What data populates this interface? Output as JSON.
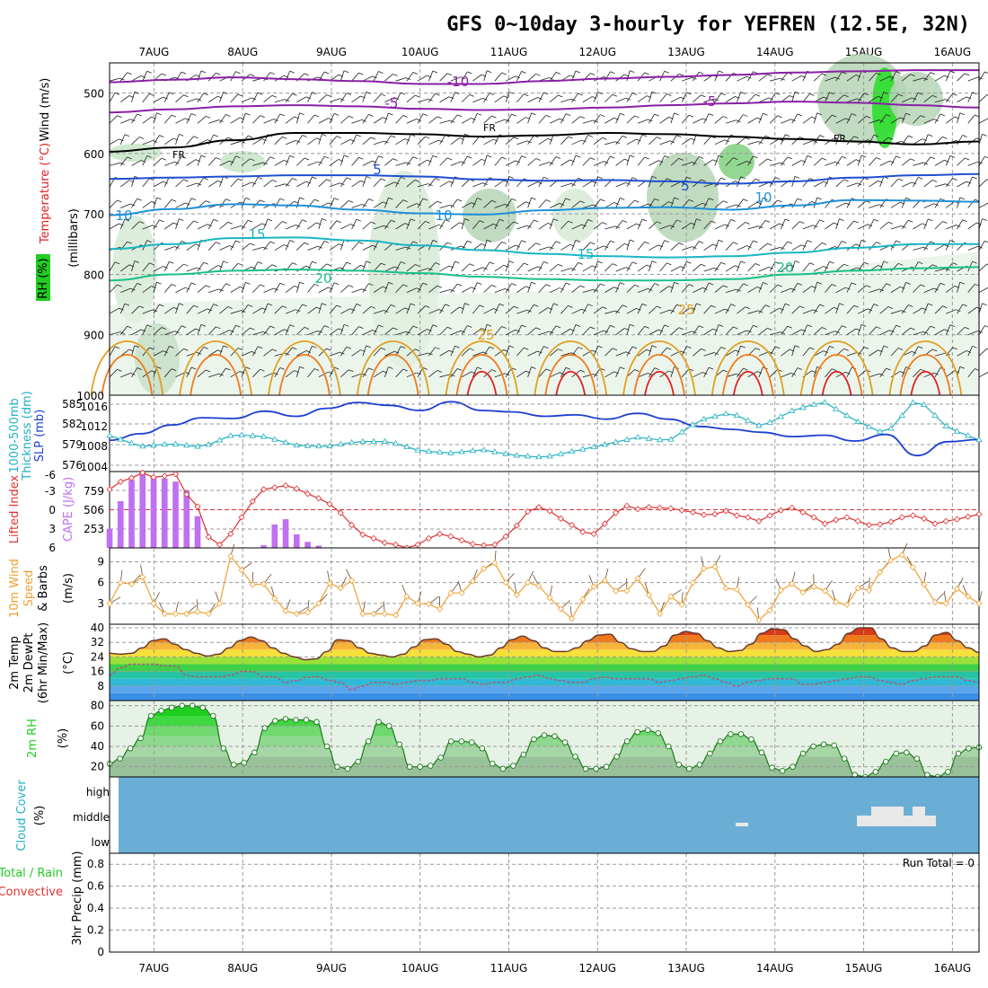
{
  "title": "GFS 0~10day 3-hourly for YEFREN (12.5E, 32N)",
  "date_labels": [
    "7AUG",
    "8AUG",
    "9AUG",
    "10AUG",
    "11AUG",
    "12AUG",
    "13AUG",
    "14AUG",
    "15AUG",
    "16AUG"
  ],
  "colors": {
    "temp_purple": "#8a1fa6",
    "temp_black": "#000000",
    "temp_blue": "#1f4fd0",
    "temp_lightblue": "#1e90d8",
    "temp_cyan": "#19b5c2",
    "temp_teal": "#19c08a",
    "temp_gold": "#e0a020",
    "temp_orange": "#f07a1a",
    "temp_red": "#e02020",
    "rh_green": "#22cc22",
    "thickness": "#1c3fd0",
    "slp": "#20b0c0",
    "lifted": "#e03030",
    "cape": "#c070f0",
    "wind10": "#f0a030",
    "cloud_bg": "#6aaed6",
    "cloud": "#e8e8e8"
  },
  "ylabels": {
    "p1": {
      "wind": "Wind (m/s)",
      "temp": "Temperature (°C)",
      "rh": "RH (%)",
      "units": "(millibars)"
    },
    "p2": {
      "a": "1000-500mb",
      "b": "Thickness (dm)",
      "c": "SLP (mb)"
    },
    "p3": {
      "a": "Lifted Index",
      "b": "CAPE (J/kg)"
    },
    "p4": {
      "a": "10m Wind",
      "b": "Speed",
      "c": "& Barbs",
      "d": "(m/s)"
    },
    "p5": {
      "a": "2m Temp",
      "b": "2m DewPt",
      "c": "(6hr Min/Max)",
      "d": "(°C)"
    },
    "p6": {
      "a": "2m RH",
      "b": "(%)"
    },
    "p7": {
      "a": "Cloud Cover",
      "b": "(%)"
    },
    "p8": {
      "a": "Total / Rain",
      "b": "Convective",
      "c": "3hr Precip (mm)"
    }
  },
  "ticks": {
    "p1": [
      "500",
      "600",
      "700",
      "800",
      "900",
      "1000"
    ],
    "p2_left": [
      "585",
      "582",
      "579",
      "576"
    ],
    "p2_right": [
      "1016",
      "1012",
      "1008",
      "1004"
    ],
    "p3_left": [
      "-6",
      "-3",
      "0",
      "3",
      "6"
    ],
    "p3_right": [
      "759",
      "506",
      "253"
    ],
    "p4": [
      "9",
      "6",
      "3"
    ],
    "p5": [
      "40",
      "32",
      "24",
      "16",
      "8"
    ],
    "p6": [
      "80",
      "60",
      "40",
      "20"
    ],
    "p7": [
      "high",
      "middle",
      "low"
    ],
    "p8": [
      "0.8",
      "0.6",
      "0.4",
      "0.2",
      "0"
    ]
  },
  "run_total": "Run Total = 0",
  "chart_data": [
    {
      "type": "heatmap",
      "panel": "upper-air temperature / RH / wind",
      "x": "time (3-hourly, 10 days)",
      "y_range_mb": [
        1000,
        450
      ],
      "contour_labels": [
        "-10",
        "-5",
        "FR",
        "5",
        "10",
        "15",
        "20",
        "25",
        "30"
      ],
      "contours": [
        {
          "label": "-10",
          "color": "temp_purple",
          "pressure_mb": [
            482,
            478,
            474,
            477,
            480,
            485,
            485,
            480,
            476,
            473,
            470,
            466,
            464,
            462,
            462
          ]
        },
        {
          "label": "-5",
          "color": "temp_purple",
          "pressure_mb": [
            532,
            527,
            522,
            520,
            522,
            526,
            528,
            527,
            524,
            520,
            517,
            514,
            516,
            520,
            524
          ]
        },
        {
          "label": "FR",
          "color": "temp_black",
          "pressure_mb": [
            597,
            590,
            578,
            566,
            566,
            568,
            572,
            570,
            566,
            568,
            572,
            576,
            580,
            585,
            580
          ]
        },
        {
          "label": "5",
          "color": "temp_blue",
          "pressure_mb": [
            642,
            640,
            638,
            636,
            636,
            638,
            643,
            645,
            644,
            646,
            650,
            646,
            640,
            636,
            634
          ]
        },
        {
          "label": "10",
          "color": "temp_lightblue",
          "pressure_mb": [
            702,
            692,
            684,
            686,
            693,
            699,
            701,
            694,
            690,
            689,
            693,
            686,
            677,
            678,
            680
          ]
        },
        {
          "label": "15",
          "color": "temp_cyan",
          "pressure_mb": [
            758,
            750,
            740,
            739,
            744,
            752,
            760,
            766,
            770,
            772,
            770,
            764,
            756,
            750,
            750
          ]
        },
        {
          "label": "20",
          "color": "temp_teal",
          "pressure_mb": [
            810,
            800,
            794,
            792,
            794,
            798,
            804,
            808,
            810,
            810,
            808,
            800,
            794,
            790,
            788
          ]
        }
      ],
      "wind_barbs": true
    },
    {
      "type": "line",
      "panel": "thickness & SLP",
      "series": [
        {
          "name": "1000-500mb Thickness (dm)",
          "values": [
            579.3,
            580.2,
            581.4,
            582.4,
            582.3,
            583.3,
            582.6,
            583.7,
            584.5,
            584.1,
            583.4,
            584.6,
            583.4,
            583.2,
            582.6,
            582.8,
            582.2,
            583.0,
            582.2,
            581.2,
            580.8,
            580.4,
            579.8,
            580.0,
            579.2,
            580.1,
            577.2,
            579.1,
            579.4
          ]
        },
        {
          "name": "SLP (mb)",
          "values": [
            1009.6,
            1007.6,
            1008.1,
            1007.5,
            1009.8,
            1009.4,
            1007.8,
            1007.6,
            1008.5,
            1008.5,
            1006.8,
            1006.4,
            1007.0,
            1006.0,
            1005.6,
            1006.8,
            1008.0,
            1009.3,
            1008.6,
            1012.4,
            1013.8,
            1011.2,
            1014.2,
            1015.8,
            1012.4,
            1009.8,
            1016.5,
            1011.0,
            1008.8
          ]
        }
      ],
      "ylim_thickness": [
        575,
        585.5
      ],
      "ylim_slp": [
        1003,
        1017
      ]
    },
    {
      "type": "bar",
      "panel": "lifted index & CAPE",
      "series": [
        {
          "name": "CAPE (J/kg)",
          "values": [
            253,
            620,
            900,
            1000,
            940,
            920,
            880,
            760,
            420,
            0,
            0,
            0,
            0,
            0,
            34,
            310,
            380,
            180,
            80,
            30,
            0,
            0,
            0,
            0,
            0,
            0,
            0,
            0,
            0,
            0,
            0,
            0,
            0,
            0,
            0,
            0,
            0,
            0,
            0,
            0,
            0,
            0,
            0,
            0,
            0,
            0,
            0,
            0,
            0,
            0,
            0,
            0,
            0,
            0,
            0,
            0,
            0,
            0,
            0,
            0,
            0,
            0,
            0,
            0,
            0,
            0,
            0,
            0,
            0,
            0,
            0,
            0,
            0,
            0,
            0,
            0,
            0,
            0,
            0,
            0
          ]
        },
        {
          "name": "Lifted Index",
          "values": [
            -3.2,
            -4.4,
            -5.0,
            -5.8,
            -5.1,
            -5.3,
            -5.6,
            -2.4,
            -0.5,
            4.3,
            5.5,
            3.8,
            1.2,
            -1.3,
            -3.2,
            -3.5,
            -3.8,
            -3.3,
            -2.5,
            -1.8,
            -0.9,
            0.5,
            2.4,
            3.9,
            4.5,
            5.2,
            5.5,
            6.0,
            5.5,
            4.5,
            3.8,
            4.2,
            4.8,
            5.4,
            5.6,
            5.5,
            4.2,
            2.5,
            0.3,
            -0.4,
            0.2,
            1.4,
            2.4,
            3.5,
            3.8,
            2.2,
            0.5,
            -0.6,
            -0.1,
            -0.4,
            -0.3,
            -0.2,
            0.1,
            0.4,
            0.8,
            0.7,
            0.2,
            0.9,
            1.2,
            1.8,
            0.9,
            0.1,
            -0.3,
            0.4,
            1.2,
            2.2,
            1.6,
            1.2,
            1.8,
            2.4,
            2.3,
            1.9,
            1.2,
            0.9,
            1.4,
            2.2,
            1.8,
            1.5,
            1.1,
            0.7
          ]
        }
      ],
      "ylim_li": [
        6,
        -6
      ],
      "ylim_cape": [
        0,
        1012
      ]
    },
    {
      "type": "line",
      "panel": "10m wind speed",
      "series": [
        {
          "name": "10m Wind Speed (m/s)",
          "values": [
            3.0,
            6.0,
            5.8,
            6.8,
            3.0,
            1.5,
            1.5,
            1.5,
            1.8,
            1.5,
            3.0,
            9.8,
            7.8,
            5.7,
            5.8,
            3.7,
            1.9,
            1.5,
            1.7,
            3.0,
            5.9,
            5.2,
            6.3,
            1.5,
            1.5,
            1.5,
            1.3,
            4.0,
            3.0,
            2.9,
            2.2,
            4.5,
            4.5,
            6.2,
            8.0,
            8.8,
            6.0,
            4.2,
            6.0,
            5.5,
            3.8,
            2.2,
            0.8,
            3.6,
            5.4,
            6.3,
            4.8,
            4.8,
            6.6,
            4.2,
            1.5,
            4.0,
            2.8,
            6.0,
            8.0,
            8.3,
            5.2,
            5.0,
            2.8,
            0.6,
            2.0,
            4.9,
            5.8,
            4.6,
            5.4,
            4.8,
            3.2,
            2.8,
            5.2,
            4.9,
            7.5,
            9.2,
            10.0,
            8.2,
            5.7,
            3.2,
            3.0,
            5.1,
            4.0,
            3.0
          ]
        }
      ],
      "ylim": [
        0,
        11
      ]
    },
    {
      "type": "area",
      "panel": "2m temperature & dewpoint",
      "series": [
        {
          "name": "2m Temp (°C)",
          "values": [
            26,
            25.5,
            26,
            29,
            33,
            34,
            31,
            28,
            26,
            24.5,
            25.5,
            29,
            33,
            35,
            33,
            29,
            26,
            24,
            22.5,
            23,
            27,
            33.5,
            33,
            29,
            26,
            25,
            24,
            25.5,
            29.5,
            33.5,
            34,
            31,
            27,
            25.5,
            24,
            25,
            29,
            33.5,
            35.5,
            33,
            29,
            27,
            27,
            29,
            33,
            36,
            36.5,
            32,
            28.5,
            27,
            27,
            30,
            36,
            38,
            37,
            33,
            29,
            27,
            27.5,
            31,
            37,
            39.5,
            39,
            34,
            30,
            27,
            28,
            31,
            37,
            40,
            40,
            34,
            29,
            27,
            27,
            30,
            36,
            37.5,
            33,
            29,
            26.5
          ]
        },
        {
          "name": "2m DewPt (°C)",
          "values": [
            14,
            18,
            20,
            20,
            20,
            19,
            19,
            14,
            13,
            13,
            13,
            14,
            16,
            16,
            13,
            13,
            10,
            11,
            13,
            13,
            11,
            10,
            6,
            8,
            10,
            10,
            9,
            10,
            11,
            11,
            12,
            12,
            12,
            10,
            9,
            10,
            10,
            12,
            13,
            14,
            12,
            11,
            10,
            10,
            12,
            13,
            12,
            12,
            12,
            12,
            10,
            11,
            12,
            13,
            14,
            12,
            10,
            8,
            10,
            11,
            12,
            12,
            12,
            9,
            9,
            10,
            11,
            12,
            13,
            13,
            11,
            10,
            9,
            11,
            12,
            13,
            13,
            13,
            11,
            10
          ]
        }
      ],
      "ylim": [
        0,
        42
      ]
    },
    {
      "type": "area",
      "panel": "2m relative humidity",
      "series": [
        {
          "name": "2m RH (%)",
          "values": [
            23,
            28,
            38,
            48,
            70,
            75,
            78,
            80,
            80,
            78,
            70,
            38,
            22,
            24,
            34,
            58,
            65,
            67,
            66,
            66,
            64,
            40,
            20,
            18,
            25,
            45,
            64,
            60,
            42,
            20,
            20,
            21,
            29,
            45,
            45,
            44,
            38,
            23,
            18,
            21,
            32,
            47,
            51,
            50,
            44,
            30,
            18,
            18,
            20,
            30,
            45,
            54,
            56,
            53,
            40,
            22,
            18,
            22,
            33,
            45,
            52,
            52,
            47,
            34,
            19,
            16,
            20,
            33,
            40,
            42,
            41,
            28,
            12,
            10,
            15,
            25,
            33,
            34,
            28,
            12,
            10,
            15,
            33,
            38,
            39
          ]
        }
      ],
      "ylim": [
        10,
        85
      ]
    },
    {
      "type": "heatmap",
      "panel": "cloud cover",
      "rows": [
        "high",
        "middle",
        "low"
      ],
      "cloud_events": [
        {
          "row": "middle",
          "day": 13.6,
          "amount": 0.25
        },
        {
          "row": "middle",
          "day": 15.0,
          "amount": 1.0
        },
        {
          "row": "middle",
          "day": 15.3,
          "amount": 1.0
        },
        {
          "row": "middle",
          "day": 15.6,
          "amount": 1.0
        }
      ]
    },
    {
      "type": "bar",
      "panel": "3hr precipitation",
      "series": [
        {
          "name": "3hr Precip (mm)",
          "values": []
        }
      ],
      "ylim": [
        0,
        0.9
      ]
    }
  ]
}
